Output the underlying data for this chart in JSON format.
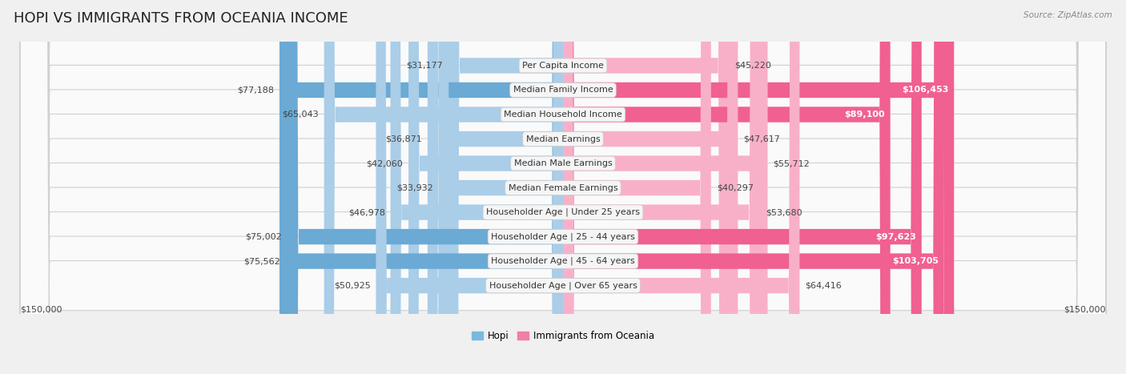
{
  "title": "HOPI VS IMMIGRANTS FROM OCEANIA INCOME",
  "source": "Source: ZipAtlas.com",
  "categories": [
    "Per Capita Income",
    "Median Family Income",
    "Median Household Income",
    "Median Earnings",
    "Median Male Earnings",
    "Median Female Earnings",
    "Householder Age | Under 25 years",
    "Householder Age | 25 - 44 years",
    "Householder Age | 45 - 64 years",
    "Householder Age | Over 65 years"
  ],
  "hopi_values": [
    31177,
    77188,
    65043,
    36871,
    42060,
    33932,
    46978,
    75002,
    75562,
    50925
  ],
  "oceania_values": [
    45220,
    106453,
    89100,
    47617,
    55712,
    40297,
    53680,
    97623,
    103705,
    64416
  ],
  "hopi_color_dark": "#6aaad4",
  "hopi_color_light": "#aacde8",
  "oceania_color_dark": "#f06090",
  "oceania_color_light": "#f8b0c8",
  "hopi_legend_color": "#7ab8e0",
  "oceania_legend_color": "#f080a8",
  "max_value": 150000,
  "background_color": "#f0f0f0",
  "row_bg_color": "#fafafa",
  "row_border_color": "#d0d0d0",
  "title_fontsize": 13,
  "label_fontsize": 8,
  "value_fontsize": 8,
  "legend_fontsize": 8.5,
  "hopi_label": "Hopi",
  "oceania_label": "Immigrants from Oceania",
  "dark_threshold": 70000,
  "white_text_threshold": 85000
}
